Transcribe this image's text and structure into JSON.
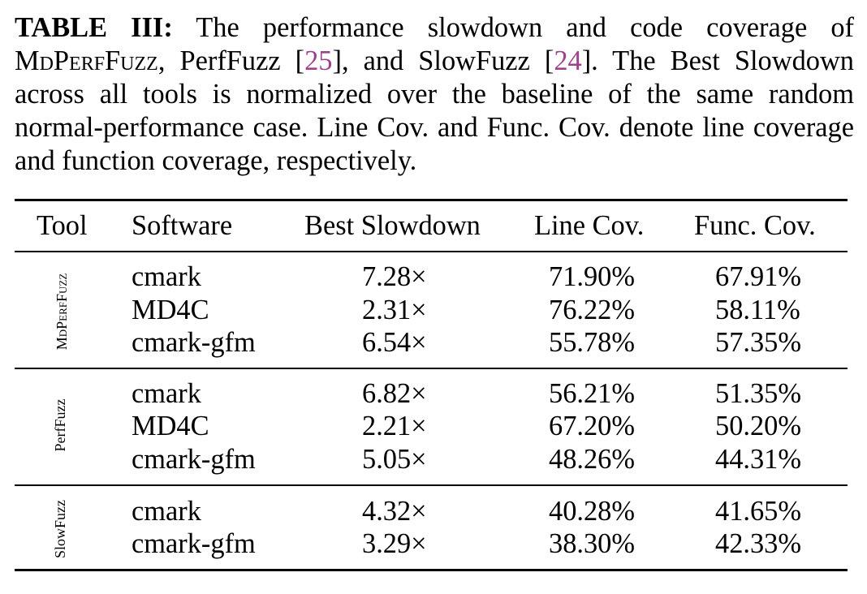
{
  "caption": {
    "label": "TABLE III:",
    "t1": " The performance slowdown and code coverage of ",
    "tool_name": "MdPerfFuzz",
    "t2": ", PerfFuzz [",
    "ref1": "25",
    "t3": "], and SlowFuzz [",
    "ref2": "24",
    "t4": "]. The Best Slowdown across all tools is normalized over the baseline of the same random normal-performance case. Line Cov. and Func. Cov. denote line coverage and function coverage, respectively."
  },
  "table": {
    "headers": [
      "Tool",
      "Software",
      "Best Slowdown",
      "Line Cov.",
      "Func. Cov."
    ],
    "groups": [
      {
        "tool": "MdPerfFuzz",
        "rows": [
          {
            "software": "cmark",
            "slowdown": "7.28×",
            "line_cov": "71.90%",
            "func_cov": "67.91%"
          },
          {
            "software": "MD4C",
            "slowdown": "2.31×",
            "line_cov": "76.22%",
            "func_cov": "58.11%"
          },
          {
            "software": "cmark-gfm",
            "slowdown": "6.54×",
            "line_cov": "55.78%",
            "func_cov": "57.35%"
          }
        ]
      },
      {
        "tool": "PerfFuzz",
        "rows": [
          {
            "software": "cmark",
            "slowdown": "6.82×",
            "line_cov": "56.21%",
            "func_cov": "51.35%"
          },
          {
            "software": "MD4C",
            "slowdown": "2.21×",
            "line_cov": "67.20%",
            "func_cov": "50.20%"
          },
          {
            "software": "cmark-gfm",
            "slowdown": "5.05×",
            "line_cov": "48.26%",
            "func_cov": "44.31%"
          }
        ]
      },
      {
        "tool": "SlowFuzz",
        "rows": [
          {
            "software": "cmark",
            "slowdown": "4.32×",
            "line_cov": "40.28%",
            "func_cov": "41.65%"
          },
          {
            "software": "cmark-gfm",
            "slowdown": "3.29×",
            "line_cov": "38.30%",
            "func_cov": "42.33%"
          }
        ]
      }
    ]
  }
}
